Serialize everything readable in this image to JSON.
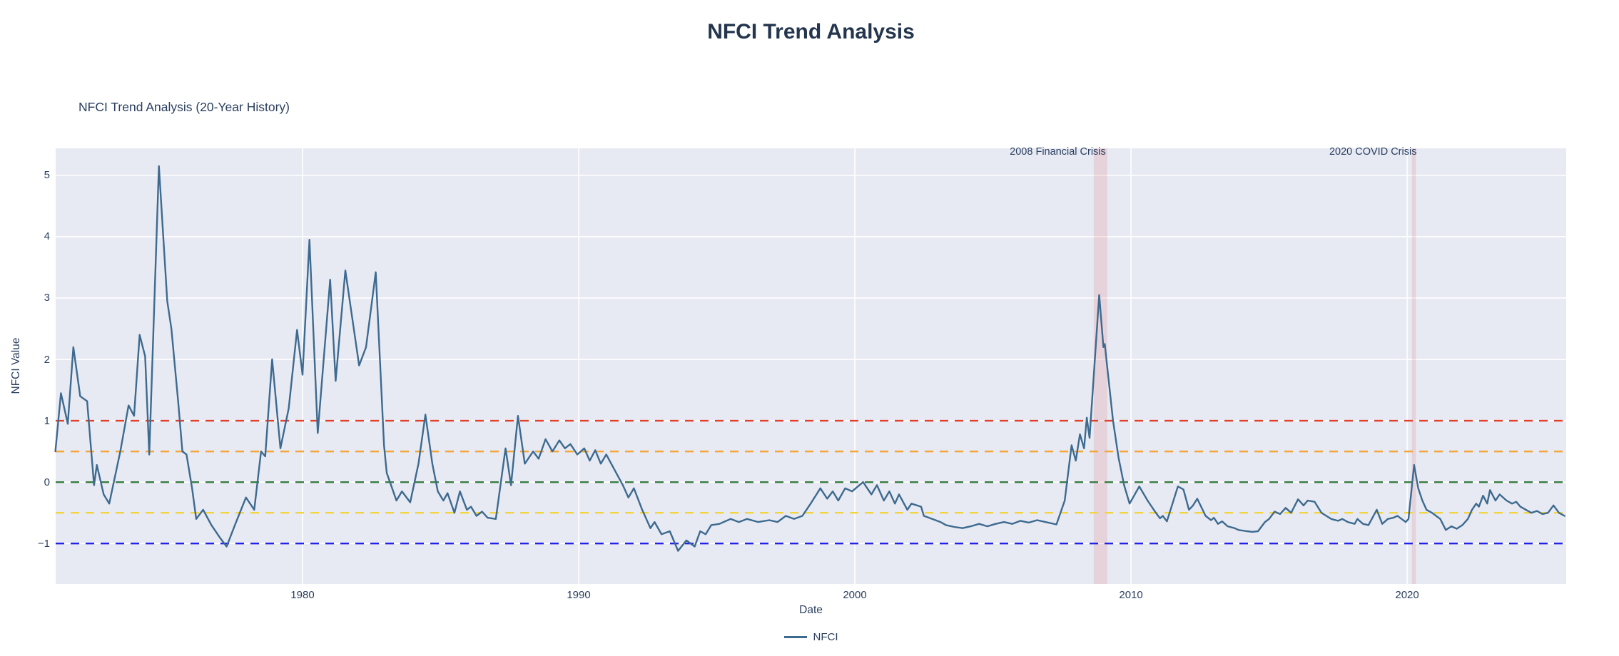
{
  "page": {
    "title": "NFCI Trend Analysis"
  },
  "colors": {
    "page_background": "#ffffff",
    "plot_background": "#e8eaf3",
    "gridline": "#ffffff",
    "text": "#2a3f5f",
    "title_text": "#24354e",
    "series_line": "#3d6a8f",
    "crisis_band": "rgba(214,39,40,0.12)"
  },
  "chart_data": {
    "type": "line",
    "title": "NFCI Trend Analysis (20-Year History)",
    "xlabel": "Date",
    "ylabel": "NFCI Value",
    "grid": true,
    "legend_position": "bottom-center",
    "x_range": [
      1971.06,
      2025.76
    ],
    "y_range": [
      -1.66,
      5.44
    ],
    "x_ticks": [
      {
        "v": 1980,
        "label": "1980"
      },
      {
        "v": 1990,
        "label": "1990"
      },
      {
        "v": 2000,
        "label": "2000"
      },
      {
        "v": 2010,
        "label": "2010"
      },
      {
        "v": 2020,
        "label": "2020"
      }
    ],
    "y_ticks": [
      {
        "v": 5,
        "label": "5"
      },
      {
        "v": 4,
        "label": "4"
      },
      {
        "v": 3,
        "label": "3"
      },
      {
        "v": 2,
        "label": "2"
      },
      {
        "v": 1,
        "label": "1"
      },
      {
        "v": 0,
        "label": "0"
      },
      {
        "v": -1,
        "label": "−1"
      }
    ],
    "reference_lines": [
      {
        "value": 1.0,
        "color": "#e3402c",
        "style": "dashed"
      },
      {
        "value": 0.5,
        "color": "#f4a63b",
        "style": "dashed"
      },
      {
        "value": 0.0,
        "color": "#3a7d44",
        "style": "dashed"
      },
      {
        "value": -0.5,
        "color": "#f2d543",
        "style": "dashed"
      },
      {
        "value": -1.0,
        "color": "#2222e8",
        "style": "dashed"
      }
    ],
    "shaded_regions": [
      {
        "label": "2008 Financial Crisis",
        "x_start": 2008.65,
        "x_end": 2009.14,
        "color": "rgba(214,39,40,0.12)"
      },
      {
        "label": "2020 COVID Crisis",
        "x_start": 2020.17,
        "x_end": 2020.32,
        "color": "rgba(214,39,40,0.12)"
      }
    ],
    "series": [
      {
        "name": "NFCI",
        "color": "#3d6a8f",
        "points": [
          [
            1971.05,
            0.5
          ],
          [
            1971.25,
            1.45
          ],
          [
            1971.5,
            0.95
          ],
          [
            1971.7,
            2.2
          ],
          [
            1971.95,
            1.4
          ],
          [
            1972.2,
            1.32
          ],
          [
            1972.45,
            -0.05
          ],
          [
            1972.55,
            0.28
          ],
          [
            1972.8,
            -0.2
          ],
          [
            1973.0,
            -0.35
          ],
          [
            1973.4,
            0.5
          ],
          [
            1973.7,
            1.25
          ],
          [
            1973.9,
            1.08
          ],
          [
            1974.1,
            2.4
          ],
          [
            1974.3,
            2.05
          ],
          [
            1974.45,
            0.45
          ],
          [
            1974.8,
            5.15
          ],
          [
            1975.1,
            2.95
          ],
          [
            1975.25,
            2.5
          ],
          [
            1975.5,
            1.3
          ],
          [
            1975.65,
            0.5
          ],
          [
            1975.8,
            0.45
          ],
          [
            1976.0,
            -0.1
          ],
          [
            1976.15,
            -0.6
          ],
          [
            1976.4,
            -0.45
          ],
          [
            1976.7,
            -0.7
          ],
          [
            1977.0,
            -0.9
          ],
          [
            1977.25,
            -1.05
          ],
          [
            1977.55,
            -0.7
          ],
          [
            1977.95,
            -0.25
          ],
          [
            1978.25,
            -0.45
          ],
          [
            1978.5,
            0.5
          ],
          [
            1978.65,
            0.42
          ],
          [
            1978.9,
            2.0
          ],
          [
            1979.2,
            0.55
          ],
          [
            1979.5,
            1.2
          ],
          [
            1979.8,
            2.48
          ],
          [
            1980.0,
            1.75
          ],
          [
            1980.25,
            3.95
          ],
          [
            1980.55,
            0.8
          ],
          [
            1981.0,
            3.3
          ],
          [
            1981.2,
            1.65
          ],
          [
            1981.55,
            3.45
          ],
          [
            1982.05,
            1.9
          ],
          [
            1982.3,
            2.2
          ],
          [
            1982.5,
            2.9
          ],
          [
            1982.65,
            3.42
          ],
          [
            1982.95,
            0.6
          ],
          [
            1983.05,
            0.15
          ],
          [
            1983.4,
            -0.3
          ],
          [
            1983.6,
            -0.15
          ],
          [
            1983.9,
            -0.33
          ],
          [
            1984.2,
            0.3
          ],
          [
            1984.45,
            1.1
          ],
          [
            1984.7,
            0.3
          ],
          [
            1984.9,
            -0.15
          ],
          [
            1985.1,
            -0.3
          ],
          [
            1985.25,
            -0.18
          ],
          [
            1985.5,
            -0.5
          ],
          [
            1985.7,
            -0.15
          ],
          [
            1985.95,
            -0.45
          ],
          [
            1986.1,
            -0.4
          ],
          [
            1986.3,
            -0.55
          ],
          [
            1986.5,
            -0.48
          ],
          [
            1986.7,
            -0.58
          ],
          [
            1987.0,
            -0.6
          ],
          [
            1987.35,
            0.55
          ],
          [
            1987.55,
            -0.05
          ],
          [
            1987.8,
            1.08
          ],
          [
            1988.05,
            0.3
          ],
          [
            1988.35,
            0.5
          ],
          [
            1988.55,
            0.38
          ],
          [
            1988.8,
            0.7
          ],
          [
            1989.05,
            0.5
          ],
          [
            1989.3,
            0.68
          ],
          [
            1989.5,
            0.55
          ],
          [
            1989.7,
            0.62
          ],
          [
            1989.95,
            0.45
          ],
          [
            1990.2,
            0.55
          ],
          [
            1990.4,
            0.35
          ],
          [
            1990.6,
            0.52
          ],
          [
            1990.8,
            0.3
          ],
          [
            1991.0,
            0.45
          ],
          [
            1991.3,
            0.2
          ],
          [
            1991.6,
            -0.05
          ],
          [
            1991.8,
            -0.25
          ],
          [
            1992.0,
            -0.1
          ],
          [
            1992.3,
            -0.45
          ],
          [
            1992.6,
            -0.75
          ],
          [
            1992.75,
            -0.65
          ],
          [
            1993.0,
            -0.85
          ],
          [
            1993.3,
            -0.8
          ],
          [
            1993.6,
            -1.12
          ],
          [
            1993.9,
            -0.95
          ],
          [
            1994.2,
            -1.05
          ],
          [
            1994.4,
            -0.8
          ],
          [
            1994.6,
            -0.85
          ],
          [
            1994.8,
            -0.7
          ],
          [
            1995.1,
            -0.68
          ],
          [
            1995.5,
            -0.6
          ],
          [
            1995.8,
            -0.65
          ],
          [
            1996.1,
            -0.6
          ],
          [
            1996.5,
            -0.65
          ],
          [
            1996.9,
            -0.62
          ],
          [
            1997.2,
            -0.65
          ],
          [
            1997.5,
            -0.55
          ],
          [
            1997.8,
            -0.6
          ],
          [
            1998.1,
            -0.55
          ],
          [
            1998.4,
            -0.35
          ],
          [
            1998.75,
            -0.1
          ],
          [
            1999.0,
            -0.27
          ],
          [
            1999.2,
            -0.15
          ],
          [
            1999.4,
            -0.3
          ],
          [
            1999.65,
            -0.1
          ],
          [
            1999.9,
            -0.15
          ],
          [
            2000.3,
            0.0
          ],
          [
            2000.6,
            -0.2
          ],
          [
            2000.8,
            -0.05
          ],
          [
            2001.05,
            -0.3
          ],
          [
            2001.25,
            -0.15
          ],
          [
            2001.45,
            -0.35
          ],
          [
            2001.6,
            -0.2
          ],
          [
            2001.9,
            -0.45
          ],
          [
            2002.05,
            -0.35
          ],
          [
            2002.4,
            -0.4
          ],
          [
            2002.5,
            -0.55
          ],
          [
            2002.8,
            -0.6
          ],
          [
            2003.1,
            -0.65
          ],
          [
            2003.3,
            -0.7
          ],
          [
            2003.6,
            -0.73
          ],
          [
            2003.9,
            -0.75
          ],
          [
            2004.2,
            -0.72
          ],
          [
            2004.5,
            -0.68
          ],
          [
            2004.8,
            -0.72
          ],
          [
            2005.1,
            -0.68
          ],
          [
            2005.4,
            -0.65
          ],
          [
            2005.7,
            -0.68
          ],
          [
            2006.0,
            -0.63
          ],
          [
            2006.3,
            -0.66
          ],
          [
            2006.6,
            -0.62
          ],
          [
            2006.9,
            -0.65
          ],
          [
            2007.3,
            -0.69
          ],
          [
            2007.6,
            -0.3
          ],
          [
            2007.85,
            0.6
          ],
          [
            2008.0,
            0.35
          ],
          [
            2008.15,
            0.78
          ],
          [
            2008.3,
            0.55
          ],
          [
            2008.4,
            1.05
          ],
          [
            2008.5,
            0.72
          ],
          [
            2008.85,
            3.05
          ],
          [
            2009.0,
            2.2
          ],
          [
            2009.05,
            2.25
          ],
          [
            2009.35,
            1.0
          ],
          [
            2009.55,
            0.4
          ],
          [
            2009.75,
            -0.05
          ],
          [
            2009.95,
            -0.35
          ],
          [
            2010.3,
            -0.07
          ],
          [
            2010.6,
            -0.3
          ],
          [
            2010.9,
            -0.5
          ],
          [
            2011.05,
            -0.59
          ],
          [
            2011.15,
            -0.55
          ],
          [
            2011.3,
            -0.64
          ],
          [
            2011.7,
            -0.07
          ],
          [
            2011.9,
            -0.12
          ],
          [
            2012.1,
            -0.45
          ],
          [
            2012.25,
            -0.38
          ],
          [
            2012.4,
            -0.27
          ],
          [
            2012.7,
            -0.55
          ],
          [
            2012.9,
            -0.62
          ],
          [
            2013.0,
            -0.58
          ],
          [
            2013.15,
            -0.68
          ],
          [
            2013.3,
            -0.64
          ],
          [
            2013.5,
            -0.72
          ],
          [
            2013.75,
            -0.75
          ],
          [
            2013.9,
            -0.78
          ],
          [
            2014.2,
            -0.8
          ],
          [
            2014.4,
            -0.81
          ],
          [
            2014.6,
            -0.8
          ],
          [
            2014.85,
            -0.65
          ],
          [
            2015.0,
            -0.6
          ],
          [
            2015.2,
            -0.48
          ],
          [
            2015.4,
            -0.52
          ],
          [
            2015.6,
            -0.42
          ],
          [
            2015.8,
            -0.5
          ],
          [
            2016.05,
            -0.28
          ],
          [
            2016.25,
            -0.38
          ],
          [
            2016.4,
            -0.3
          ],
          [
            2016.65,
            -0.32
          ],
          [
            2016.9,
            -0.5
          ],
          [
            2017.25,
            -0.6
          ],
          [
            2017.5,
            -0.63
          ],
          [
            2017.65,
            -0.6
          ],
          [
            2017.85,
            -0.65
          ],
          [
            2018.1,
            -0.68
          ],
          [
            2018.2,
            -0.6
          ],
          [
            2018.4,
            -0.68
          ],
          [
            2018.6,
            -0.7
          ],
          [
            2018.9,
            -0.45
          ],
          [
            2019.1,
            -0.68
          ],
          [
            2019.3,
            -0.6
          ],
          [
            2019.5,
            -0.58
          ],
          [
            2019.65,
            -0.55
          ],
          [
            2019.8,
            -0.6
          ],
          [
            2019.95,
            -0.65
          ],
          [
            2020.05,
            -0.6
          ],
          [
            2020.25,
            0.28
          ],
          [
            2020.4,
            -0.1
          ],
          [
            2020.55,
            -0.3
          ],
          [
            2020.7,
            -0.45
          ],
          [
            2020.9,
            -0.5
          ],
          [
            2021.05,
            -0.55
          ],
          [
            2021.2,
            -0.6
          ],
          [
            2021.4,
            -0.78
          ],
          [
            2021.6,
            -0.72
          ],
          [
            2021.8,
            -0.76
          ],
          [
            2022.0,
            -0.7
          ],
          [
            2022.2,
            -0.6
          ],
          [
            2022.35,
            -0.45
          ],
          [
            2022.5,
            -0.35
          ],
          [
            2022.6,
            -0.4
          ],
          [
            2022.75,
            -0.22
          ],
          [
            2022.9,
            -0.35
          ],
          [
            2023.0,
            -0.13
          ],
          [
            2023.2,
            -0.3
          ],
          [
            2023.35,
            -0.2
          ],
          [
            2023.6,
            -0.3
          ],
          [
            2023.8,
            -0.35
          ],
          [
            2023.95,
            -0.32
          ],
          [
            2024.1,
            -0.4
          ],
          [
            2024.3,
            -0.45
          ],
          [
            2024.5,
            -0.5
          ],
          [
            2024.7,
            -0.47
          ],
          [
            2024.9,
            -0.52
          ],
          [
            2025.1,
            -0.5
          ],
          [
            2025.3,
            -0.38
          ],
          [
            2025.5,
            -0.5
          ],
          [
            2025.7,
            -0.55
          ]
        ]
      }
    ]
  }
}
